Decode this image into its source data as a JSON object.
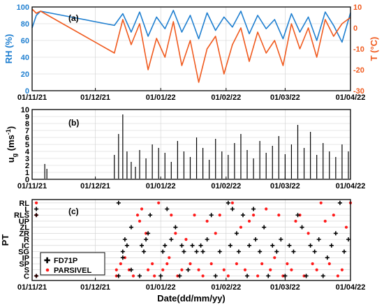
{
  "colors": {
    "rh": "#1f7fd0",
    "t": "#f05a1e",
    "fd71p": "#000000",
    "parsivel": "#ff1a1a",
    "grid": "#cfcfcf"
  },
  "chart_data": [
    {
      "panel_label": "(a)",
      "type": "line",
      "ylabel_left": "RH (%)",
      "ylabel_right": "T (°C)",
      "ylim_left": [
        0,
        100
      ],
      "ylim_right": [
        -30,
        10
      ],
      "yticks_left": [
        "0",
        "20",
        "40",
        "60",
        "80",
        "100"
      ],
      "yticks_right": [
        "-30",
        "-20",
        "-10",
        "0",
        "10"
      ],
      "xtick_labels": [
        "01/11/21",
        "01/12/21",
        "01/01/22",
        "01/02/22",
        "01/03/22",
        "01/04/22"
      ],
      "grid": true,
      "series": [
        {
          "name": "RH",
          "x": [
            "01/11/21",
            "03/11/21",
            "05/11/21",
            "10/12/21",
            "14/12/21",
            "18/12/21",
            "22/12/21",
            "26/12/21",
            "30/12/21",
            "03/01/22",
            "07/01/22",
            "11/01/22",
            "15/01/22",
            "19/01/22",
            "23/01/22",
            "27/01/22",
            "31/01/22",
            "04/02/22",
            "08/02/22",
            "12/02/22",
            "16/02/22",
            "20/02/22",
            "24/02/22",
            "28/02/22",
            "04/03/22",
            "08/03/22",
            "12/03/22",
            "16/03/22",
            "20/03/22",
            "24/03/22",
            "28/03/22",
            "01/04/22"
          ],
          "values": [
            75,
            90,
            95,
            78,
            92,
            70,
            94,
            65,
            88,
            74,
            96,
            70,
            90,
            62,
            93,
            72,
            88,
            76,
            95,
            68,
            90,
            74,
            85,
            62,
            92,
            70,
            88,
            60,
            94,
            78,
            58,
            93
          ]
        },
        {
          "name": "T",
          "x": [
            "01/11/21",
            "03/11/21",
            "05/11/21",
            "10/12/21",
            "14/12/21",
            "18/12/21",
            "22/12/21",
            "26/12/21",
            "30/12/21",
            "03/01/22",
            "07/01/22",
            "11/01/22",
            "15/01/22",
            "19/01/22",
            "23/01/22",
            "27/01/22",
            "31/01/22",
            "04/02/22",
            "08/02/22",
            "12/02/22",
            "16/02/22",
            "20/02/22",
            "24/02/22",
            "28/02/22",
            "04/03/22",
            "08/03/22",
            "12/03/22",
            "16/03/22",
            "20/03/22",
            "24/03/22",
            "28/03/22",
            "01/04/22"
          ],
          "values": [
            9,
            7,
            8,
            -12,
            4,
            -8,
            2,
            -20,
            -5,
            -14,
            3,
            -18,
            -6,
            -26,
            -10,
            -4,
            -22,
            -8,
            0,
            -16,
            -2,
            -12,
            -6,
            -18,
            2,
            -10,
            0,
            -14,
            4,
            -4,
            2,
            5
          ]
        }
      ]
    },
    {
      "panel_label": "(b)",
      "type": "scatter",
      "ylabel_main": "u",
      "ylabel_sub": "g",
      "ylabel_unit": " (ms",
      "ylabel_exp": "-1",
      "ylabel_close": ")",
      "ylim": [
        0,
        10
      ],
      "yticks": [
        "0",
        "1",
        "2",
        "3",
        "4",
        "5",
        "6",
        "7",
        "8",
        "9",
        "10"
      ],
      "xtick_labels": [
        "01/11/21",
        "01/12/21",
        "01/01/22",
        "01/02/22",
        "01/03/22",
        "01/04/22"
      ],
      "grid": true,
      "series": [
        {
          "name": "ug",
          "x": [
            "07/11/21",
            "08/11/21",
            "10/12/21",
            "12/12/21",
            "14/12/21",
            "16/12/21",
            "18/12/21",
            "20/12/21",
            "22/12/21",
            "25/12/21",
            "28/12/21",
            "31/12/21",
            "03/01/22",
            "06/01/22",
            "09/01/22",
            "12/01/22",
            "15/01/22",
            "18/01/22",
            "21/01/22",
            "24/01/22",
            "27/01/22",
            "30/01/22",
            "02/02/22",
            "05/02/22",
            "08/02/22",
            "11/02/22",
            "14/02/22",
            "17/02/22",
            "20/02/22",
            "23/02/22",
            "26/02/22",
            "01/03/22",
            "04/03/22",
            "07/03/22",
            "10/03/22",
            "13/03/22",
            "16/03/22",
            "19/03/22",
            "22/03/22",
            "25/03/22",
            "28/03/22",
            "31/03/22"
          ],
          "values": [
            2.2,
            1.5,
            3.5,
            6.5,
            9.3,
            4.0,
            2.5,
            1.8,
            4.2,
            3.0,
            5.0,
            4.5,
            3.8,
            2.5,
            5.5,
            4.0,
            3.2,
            6.0,
            4.5,
            2.8,
            5.8,
            4.0,
            3.5,
            5.2,
            6.5,
            4.2,
            3.0,
            5.5,
            3.8,
            4.8,
            6.2,
            3.6,
            5.0,
            7.8,
            4.5,
            6.8,
            3.5,
            5.2,
            4.0,
            3.2,
            5.0,
            4.0
          ]
        }
      ]
    },
    {
      "panel_label": "(c)",
      "type": "scatter",
      "ylabel": "PT",
      "categories": [
        "C",
        "S",
        "SP",
        "IP",
        "SG",
        "IC",
        "R",
        "ZR",
        "ZL",
        "UP",
        "RLS",
        "L",
        "RL"
      ],
      "xtick_labels": [
        "01/11/21",
        "01/12/21",
        "01/01/22",
        "01/02/22",
        "01/03/22",
        "01/04/22"
      ],
      "xlabel": "Date(dd/mm/yy)",
      "legend_position": "bottom-left",
      "grid": true,
      "series": [
        {
          "name": "FD71P",
          "points": [
            [
              "03/11/21",
              "C"
            ],
            [
              "03/11/21",
              "L"
            ],
            [
              "03/11/21",
              "RLS"
            ],
            [
              "12/12/21",
              "RL"
            ],
            [
              "12/12/21",
              "C"
            ],
            [
              "14/12/21",
              "IP"
            ],
            [
              "14/12/21",
              "SG"
            ],
            [
              "15/12/21",
              "R"
            ],
            [
              "16/12/21",
              "IC"
            ],
            [
              "18/12/21",
              "ZL"
            ],
            [
              "18/12/21",
              "S"
            ],
            [
              "22/12/21",
              "C"
            ],
            [
              "23/12/21",
              "IC"
            ],
            [
              "24/12/21",
              "SG"
            ],
            [
              "25/12/21",
              "R"
            ],
            [
              "26/12/21",
              "ZR"
            ],
            [
              "27/12/21",
              "RLS"
            ],
            [
              "01/01/22",
              "C"
            ],
            [
              "02/01/22",
              "SG"
            ],
            [
              "03/01/22",
              "IC"
            ],
            [
              "04/01/22",
              "L"
            ],
            [
              "06/01/22",
              "R"
            ],
            [
              "08/01/22",
              "ZL"
            ],
            [
              "10/01/22",
              "C"
            ],
            [
              "11/01/22",
              "IC"
            ],
            [
              "12/01/22",
              "SG"
            ],
            [
              "14/01/22",
              "S"
            ],
            [
              "16/01/22",
              "IC"
            ],
            [
              "18/01/22",
              "SG"
            ],
            [
              "20/01/22",
              "IC"
            ],
            [
              "21/01/22",
              "SG"
            ],
            [
              "23/01/22",
              "R"
            ],
            [
              "25/01/22",
              "RLS"
            ],
            [
              "27/01/22",
              "C"
            ],
            [
              "29/01/22",
              "SG"
            ],
            [
              "02/02/22",
              "RL"
            ],
            [
              "03/02/22",
              "IC"
            ],
            [
              "04/02/22",
              "L"
            ],
            [
              "06/02/22",
              "ZR"
            ],
            [
              "07/02/22",
              "SG"
            ],
            [
              "09/02/22",
              "RLS"
            ],
            [
              "11/02/22",
              "C"
            ],
            [
              "12/02/22",
              "IC"
            ],
            [
              "14/02/22",
              "L"
            ],
            [
              "15/02/22",
              "R"
            ],
            [
              "17/02/22",
              "SG"
            ],
            [
              "19/02/22",
              "ZL"
            ],
            [
              "21/02/22",
              "C"
            ],
            [
              "23/02/22",
              "IC"
            ],
            [
              "25/02/22",
              "SG"
            ],
            [
              "27/02/22",
              "R"
            ],
            [
              "01/03/22",
              "C"
            ],
            [
              "03/03/22",
              "IC"
            ],
            [
              "05/03/22",
              "SG"
            ],
            [
              "07/03/22",
              "RLS"
            ],
            [
              "09/03/22",
              "ZL"
            ],
            [
              "11/03/22",
              "C"
            ],
            [
              "13/03/22",
              "IC"
            ],
            [
              "15/03/22",
              "SG"
            ],
            [
              "17/03/22",
              "R"
            ],
            [
              "19/03/22",
              "C"
            ],
            [
              "21/03/22",
              "IP"
            ],
            [
              "23/03/22",
              "IC"
            ],
            [
              "25/03/22",
              "ZR"
            ],
            [
              "27/03/22",
              "RL"
            ],
            [
              "29/03/22",
              "SG"
            ],
            [
              "31/03/22",
              "R"
            ]
          ]
        },
        {
          "name": "PARSIVEL",
          "points": [
            [
              "03/11/21",
              "C"
            ],
            [
              "03/11/21",
              "RL"
            ],
            [
              "03/11/21",
              "RLS"
            ],
            [
              "11/12/21",
              "C"
            ],
            [
              "11/12/21",
              "S"
            ],
            [
              "13/12/21",
              "SP"
            ],
            [
              "15/12/21",
              "IP"
            ],
            [
              "17/12/21",
              "S"
            ],
            [
              "19/12/21",
              "C"
            ],
            [
              "21/12/21",
              "RLS"
            ],
            [
              "22/12/21",
              "UP"
            ],
            [
              "23/12/21",
              "L"
            ],
            [
              "25/12/21",
              "ZR"
            ],
            [
              "26/12/21",
              "S"
            ],
            [
              "28/12/21",
              "SP"
            ],
            [
              "29/12/21",
              "C"
            ],
            [
              "31/12/21",
              "RL"
            ],
            [
              "02/01/22",
              "S"
            ],
            [
              "04/01/22",
              "SP"
            ],
            [
              "05/01/22",
              "IP"
            ],
            [
              "06/01/22",
              "RLS"
            ],
            [
              "08/01/22",
              "ZR"
            ],
            [
              "09/01/22",
              "C"
            ],
            [
              "11/01/22",
              "S"
            ],
            [
              "13/01/22",
              "R"
            ],
            [
              "15/01/22",
              "SP"
            ],
            [
              "17/01/22",
              "RLS"
            ],
            [
              "19/01/22",
              "S"
            ],
            [
              "21/01/22",
              "C"
            ],
            [
              "23/01/22",
              "UP"
            ],
            [
              "25/01/22",
              "SP"
            ],
            [
              "27/01/22",
              "ZR"
            ],
            [
              "29/01/22",
              "RLS"
            ],
            [
              "31/01/22",
              "S"
            ],
            [
              "02/02/22",
              "C"
            ],
            [
              "04/02/22",
              "RL"
            ],
            [
              "06/02/22",
              "SP"
            ],
            [
              "08/02/22",
              "ZL"
            ],
            [
              "10/02/22",
              "S"
            ],
            [
              "12/02/22",
              "UP"
            ],
            [
              "14/02/22",
              "RLS"
            ],
            [
              "16/02/22",
              "C"
            ],
            [
              "18/02/22",
              "SP"
            ],
            [
              "20/02/22",
              "L"
            ],
            [
              "22/02/22",
              "S"
            ],
            [
              "24/02/22",
              "IP"
            ],
            [
              "26/02/22",
              "RLS"
            ],
            [
              "28/02/22",
              "C"
            ],
            [
              "02/03/22",
              "SP"
            ],
            [
              "04/03/22",
              "S"
            ],
            [
              "06/03/22",
              "UP"
            ],
            [
              "08/03/22",
              "RLS"
            ],
            [
              "10/03/22",
              "C"
            ],
            [
              "12/03/22",
              "ZR"
            ],
            [
              "14/03/22",
              "SP"
            ],
            [
              "16/03/22",
              "S"
            ],
            [
              "18/03/22",
              "RL"
            ],
            [
              "20/03/22",
              "UP"
            ],
            [
              "22/03/22",
              "SP"
            ],
            [
              "24/03/22",
              "RLS"
            ],
            [
              "26/03/22",
              "C"
            ],
            [
              "28/03/22",
              "S"
            ],
            [
              "30/03/22",
              "ZL"
            ],
            [
              "01/04/22",
              "RL"
            ]
          ]
        }
      ]
    }
  ]
}
